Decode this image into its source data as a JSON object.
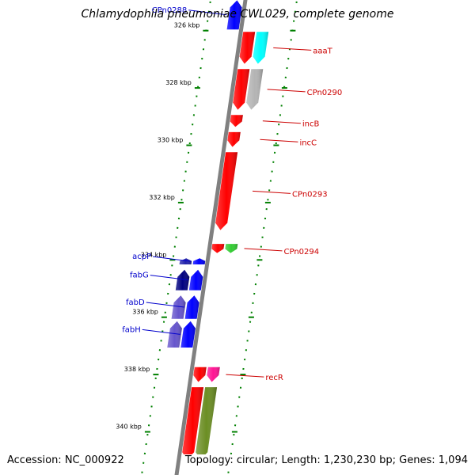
{
  "title": "Chlamydophila pneumoniae CWL029, complete genome",
  "accession_text": "Accession: NC_000922",
  "summary_text": "Topology: circular; Length: 1,230,230 bp; Genes: 1,094",
  "colors": {
    "forward_label": "#0000cc",
    "reverse_label": "#cc0000",
    "backbone": "#808080",
    "tick": "#008000"
  },
  "ticks": [
    {
      "label": "326 kbp",
      "kbp": 326
    },
    {
      "label": "328 kbp",
      "kbp": 328
    },
    {
      "label": "330 kbp",
      "kbp": 330
    },
    {
      "label": "332 kbp",
      "kbp": 332
    },
    {
      "label": "334 kbp",
      "kbp": 334
    },
    {
      "label": "336 kbp",
      "kbp": 336
    },
    {
      "label": "338 kbp",
      "kbp": 338
    },
    {
      "label": "340 kbp",
      "kbp": 340
    }
  ],
  "features": [
    {
      "name": "CPn0288",
      "strand": "forward",
      "color": "#0000ff",
      "start_kbp": 324.9,
      "end_kbp": 326.0,
      "labeled": true
    },
    {
      "name": "aaaT",
      "strand": "reverse",
      "color": "#ff0000",
      "start_kbp": 326.0,
      "end_kbp": 327.2,
      "labeled": true
    },
    {
      "name": "",
      "strand": "reverse",
      "color": "#00ffff",
      "start_kbp": 326.0,
      "end_kbp": 327.2,
      "row": 2,
      "labeled": false
    },
    {
      "name": "CPn0290",
      "strand": "reverse",
      "color": "#ff0000",
      "start_kbp": 327.3,
      "end_kbp": 328.8,
      "labeled": true
    },
    {
      "name": "",
      "strand": "reverse",
      "color": "#b4b4b4",
      "start_kbp": 327.3,
      "end_kbp": 328.8,
      "row": 2,
      "labeled": false
    },
    {
      "name": "incB",
      "strand": "reverse",
      "color": "#ff0000",
      "start_kbp": 328.9,
      "end_kbp": 329.4,
      "labeled": true
    },
    {
      "name": "incC",
      "strand": "reverse",
      "color": "#ff0000",
      "start_kbp": 329.5,
      "end_kbp": 330.1,
      "labeled": true
    },
    {
      "name": "CPn0293",
      "strand": "reverse",
      "color": "#ff0000",
      "start_kbp": 330.2,
      "end_kbp": 333.0,
      "labeled": true
    },
    {
      "name": "CPn0294",
      "strand": "reverse",
      "color": "#ff0000",
      "start_kbp": 333.4,
      "end_kbp": 333.8,
      "labeled": true
    },
    {
      "name": "",
      "strand": "reverse",
      "color": "#33cc33",
      "start_kbp": 333.4,
      "end_kbp": 333.8,
      "row": 2,
      "labeled": false
    },
    {
      "name": "acpP",
      "strand": "forward",
      "color": "#0000ff",
      "start_kbp": 333.9,
      "end_kbp": 334.2,
      "labeled": true
    },
    {
      "name": "",
      "strand": "forward",
      "color": "#2222aa",
      "start_kbp": 333.9,
      "end_kbp": 334.2,
      "row": 2,
      "labeled": false
    },
    {
      "name": "fabG",
      "strand": "forward",
      "color": "#0000ff",
      "start_kbp": 334.3,
      "end_kbp": 335.1,
      "labeled": true
    },
    {
      "name": "",
      "strand": "forward",
      "color": "#000080",
      "start_kbp": 334.3,
      "end_kbp": 335.1,
      "row": 2,
      "labeled": false
    },
    {
      "name": "fabD",
      "strand": "forward",
      "color": "#0000ff",
      "start_kbp": 335.2,
      "end_kbp": 336.1,
      "labeled": true
    },
    {
      "name": "",
      "strand": "forward",
      "color": "#6655cc",
      "start_kbp": 335.2,
      "end_kbp": 336.1,
      "row": 2,
      "labeled": false
    },
    {
      "name": "fabH",
      "strand": "forward",
      "color": "#0000ff",
      "start_kbp": 336.1,
      "end_kbp": 337.1,
      "labeled": true
    },
    {
      "name": "",
      "strand": "forward",
      "color": "#6655cc",
      "start_kbp": 336.1,
      "end_kbp": 337.1,
      "row": 2,
      "labeled": false
    },
    {
      "name": "recR",
      "strand": "reverse",
      "color": "#ff0000",
      "start_kbp": 337.7,
      "end_kbp": 338.3,
      "labeled": true
    },
    {
      "name": "",
      "strand": "reverse",
      "color": "#ff1493",
      "start_kbp": 337.7,
      "end_kbp": 338.3,
      "row": 2,
      "labeled": false
    },
    {
      "name": "",
      "strand": "reverse",
      "color": "#ff0000",
      "start_kbp": 338.4,
      "end_kbp": 341.0,
      "labeled": false
    },
    {
      "name": "",
      "strand": "reverse",
      "color": "#6b8e23",
      "start_kbp": 338.4,
      "end_kbp": 341.0,
      "row": 2,
      "labeled": false
    }
  ]
}
